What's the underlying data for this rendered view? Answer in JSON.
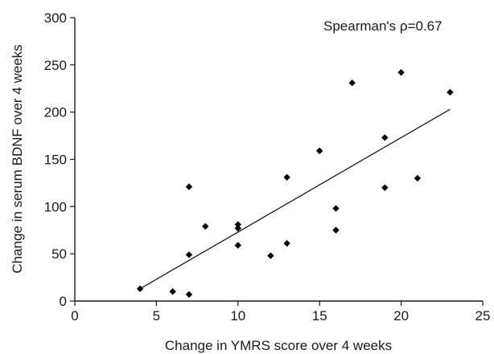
{
  "chart_data": {
    "type": "scatter",
    "title": "",
    "xlabel": "Change in YMRS score over 4 weeks",
    "ylabel": "Change in serum BDNF over 4 weeks",
    "xlim": [
      0,
      25
    ],
    "ylim": [
      0,
      300
    ],
    "xticks": [
      0,
      5,
      10,
      15,
      20,
      25
    ],
    "yticks": [
      0,
      50,
      100,
      150,
      200,
      250,
      300
    ],
    "grid": false,
    "annotation": "Spearman's ρ=0.67",
    "points": [
      {
        "x": 4,
        "y": 13
      },
      {
        "x": 6,
        "y": 10
      },
      {
        "x": 7,
        "y": 7
      },
      {
        "x": 7,
        "y": 49
      },
      {
        "x": 7,
        "y": 121
      },
      {
        "x": 8,
        "y": 79
      },
      {
        "x": 10,
        "y": 59
      },
      {
        "x": 10,
        "y": 77
      },
      {
        "x": 10,
        "y": 81
      },
      {
        "x": 12,
        "y": 48
      },
      {
        "x": 13,
        "y": 61
      },
      {
        "x": 13,
        "y": 131
      },
      {
        "x": 15,
        "y": 159
      },
      {
        "x": 16,
        "y": 75
      },
      {
        "x": 16,
        "y": 98
      },
      {
        "x": 17,
        "y": 231
      },
      {
        "x": 19,
        "y": 120
      },
      {
        "x": 19,
        "y": 173
      },
      {
        "x": 20,
        "y": 242
      },
      {
        "x": 21,
        "y": 130
      },
      {
        "x": 23,
        "y": 221
      }
    ],
    "trendline": {
      "x": [
        4,
        23
      ],
      "y": [
        13,
        203
      ]
    }
  }
}
